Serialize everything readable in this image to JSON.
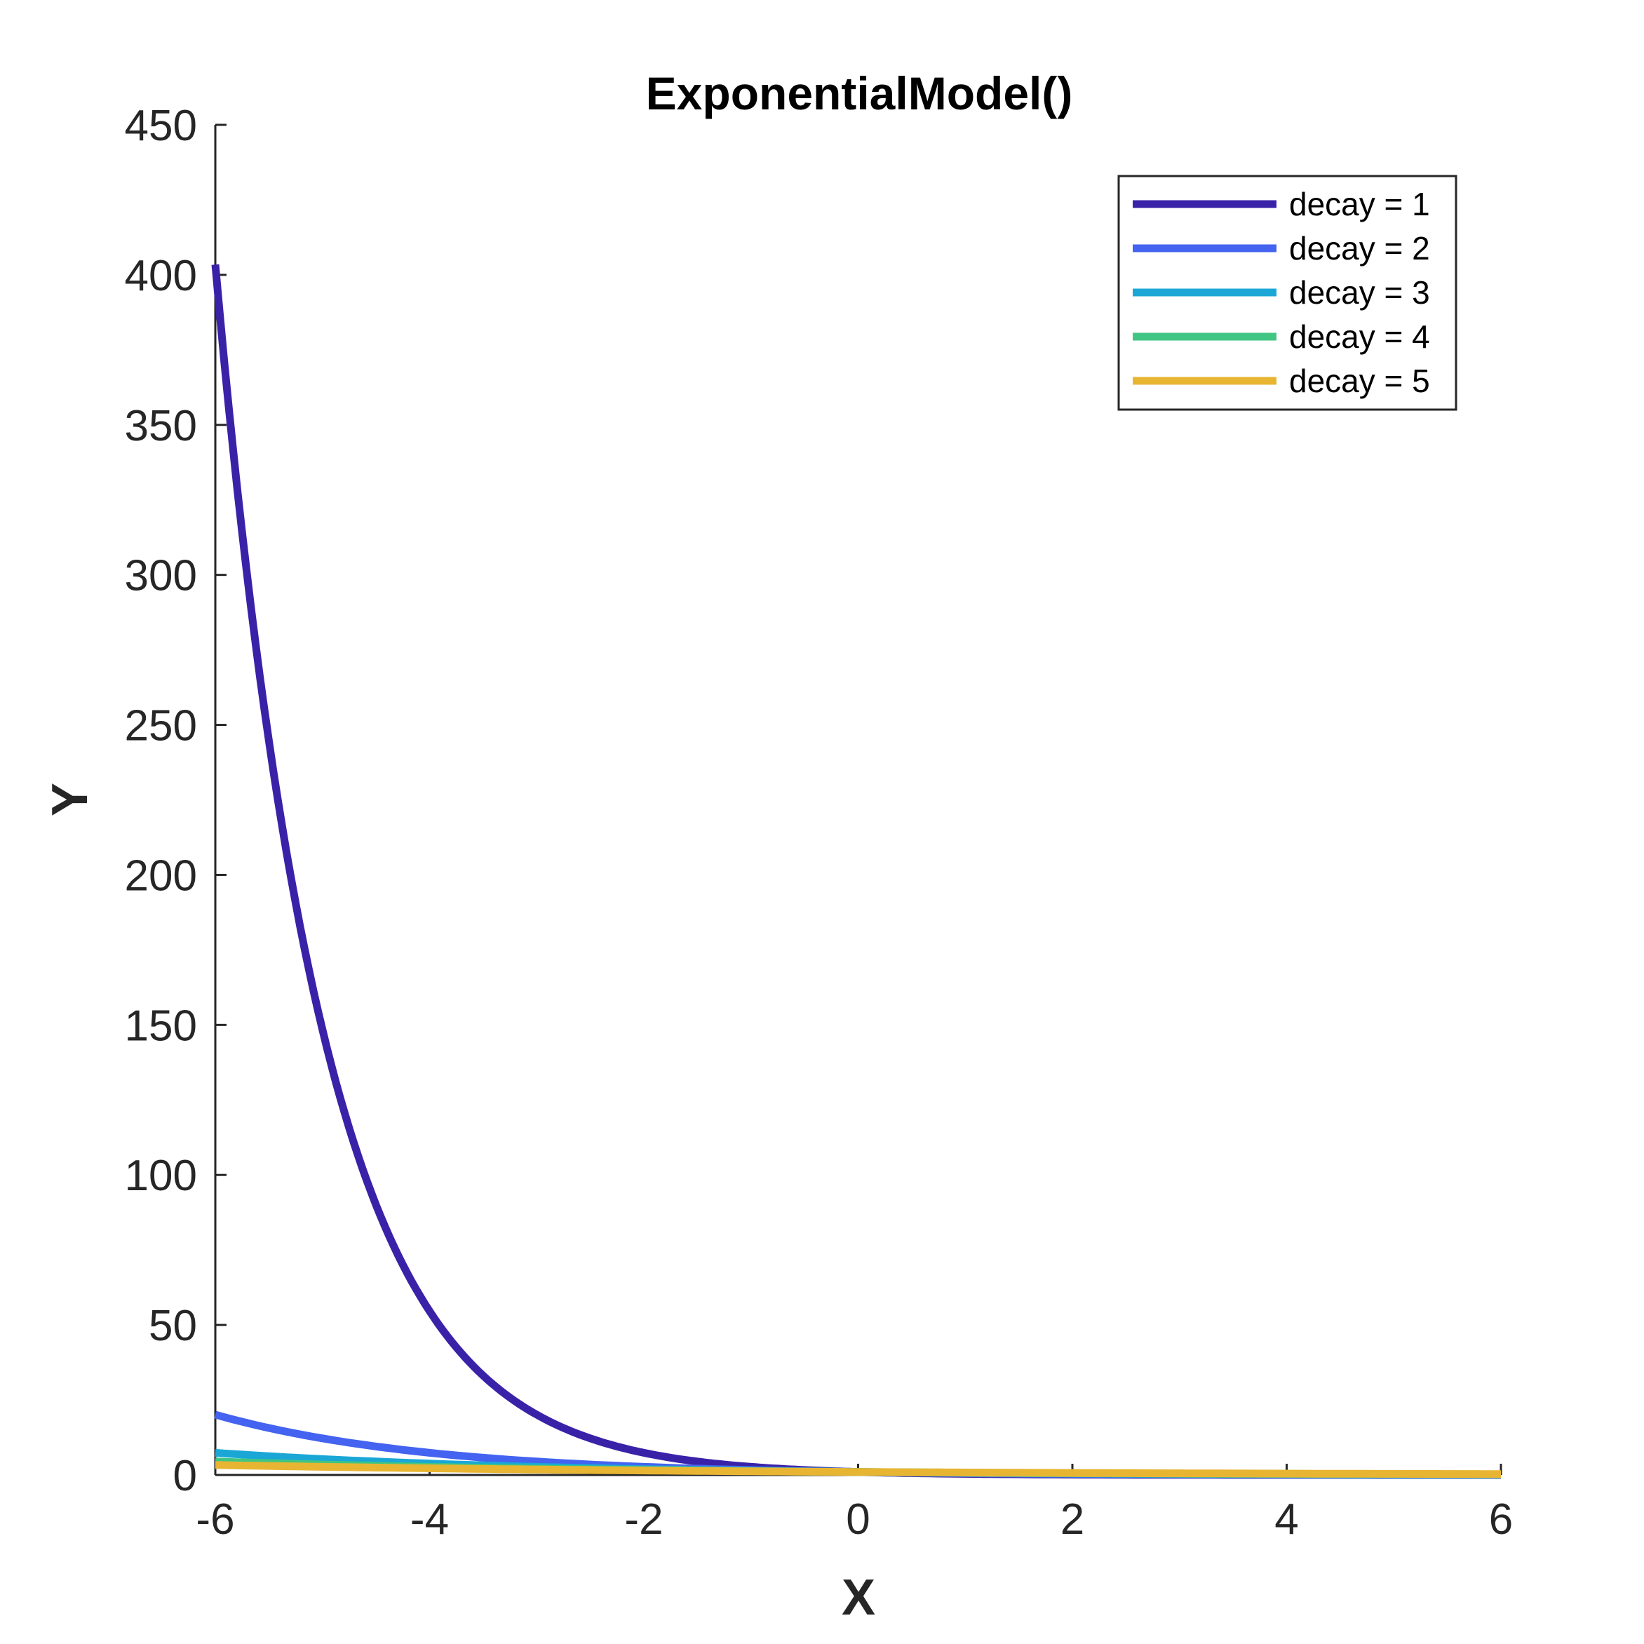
{
  "chart_data": {
    "type": "line",
    "title": "ExponentialModel()",
    "xlabel": "X",
    "ylabel": "Y",
    "xlim": [
      -6,
      6
    ],
    "ylim": [
      0,
      450
    ],
    "xticks": [
      -6,
      -4,
      -2,
      0,
      2,
      4,
      6
    ],
    "yticks": [
      0,
      50,
      100,
      150,
      200,
      250,
      300,
      350,
      400,
      450
    ],
    "xtick_labels": [
      "-6",
      "-4",
      "-2",
      "0",
      "2",
      "4",
      "6"
    ],
    "ytick_labels": [
      "0",
      "50",
      "100",
      "150",
      "200",
      "250",
      "300",
      "350",
      "400",
      "450"
    ],
    "grid": false,
    "legend_position": "top-right",
    "series": [
      {
        "name": "decay = 1",
        "color": "#3a22a8",
        "x": [
          -6,
          -5.5,
          -5,
          -4.5,
          -4,
          -3.5,
          -3,
          -2.5,
          -2,
          -1.5,
          -1,
          -0.5,
          0,
          1,
          2,
          3,
          4,
          5,
          6
        ],
        "y": [
          403.4,
          244.7,
          148.4,
          90.0,
          54.6,
          33.1,
          20.1,
          12.2,
          7.39,
          4.48,
          2.72,
          1.65,
          1.0,
          0.37,
          0.14,
          0.05,
          0.02,
          0.01,
          0.0
        ]
      },
      {
        "name": "decay = 2",
        "color": "#4363f0",
        "x": [
          -6,
          -5,
          -4,
          -3,
          -2,
          -1,
          0,
          1,
          2,
          3,
          4,
          5,
          6
        ],
        "y": [
          20.1,
          12.2,
          7.39,
          4.48,
          2.72,
          1.65,
          1.0,
          0.61,
          0.37,
          0.22,
          0.14,
          0.08,
          0.05
        ]
      },
      {
        "name": "decay = 3",
        "color": "#1aa7d6",
        "x": [
          -6,
          -5,
          -4,
          -3,
          -2,
          -1,
          0,
          1,
          2,
          3,
          4,
          5,
          6
        ],
        "y": [
          7.39,
          5.29,
          3.79,
          2.72,
          1.95,
          1.4,
          1.0,
          0.72,
          0.51,
          0.37,
          0.26,
          0.19,
          0.14
        ]
      },
      {
        "name": "decay = 4",
        "color": "#40c583",
        "x": [
          -6,
          -5,
          -4,
          -3,
          -2,
          -1,
          0,
          1,
          2,
          3,
          4,
          5,
          6
        ],
        "y": [
          4.48,
          3.49,
          2.72,
          2.12,
          1.65,
          1.28,
          1.0,
          0.78,
          0.61,
          0.47,
          0.37,
          0.29,
          0.22
        ]
      },
      {
        "name": "decay = 5",
        "color": "#e8b532",
        "x": [
          -6,
          -5,
          -4,
          -3,
          -2,
          -1,
          0,
          1,
          2,
          3,
          4,
          5,
          6
        ],
        "y": [
          3.32,
          2.72,
          2.23,
          1.82,
          1.49,
          1.22,
          1.0,
          0.82,
          0.67,
          0.55,
          0.45,
          0.37,
          0.3
        ]
      }
    ]
  }
}
